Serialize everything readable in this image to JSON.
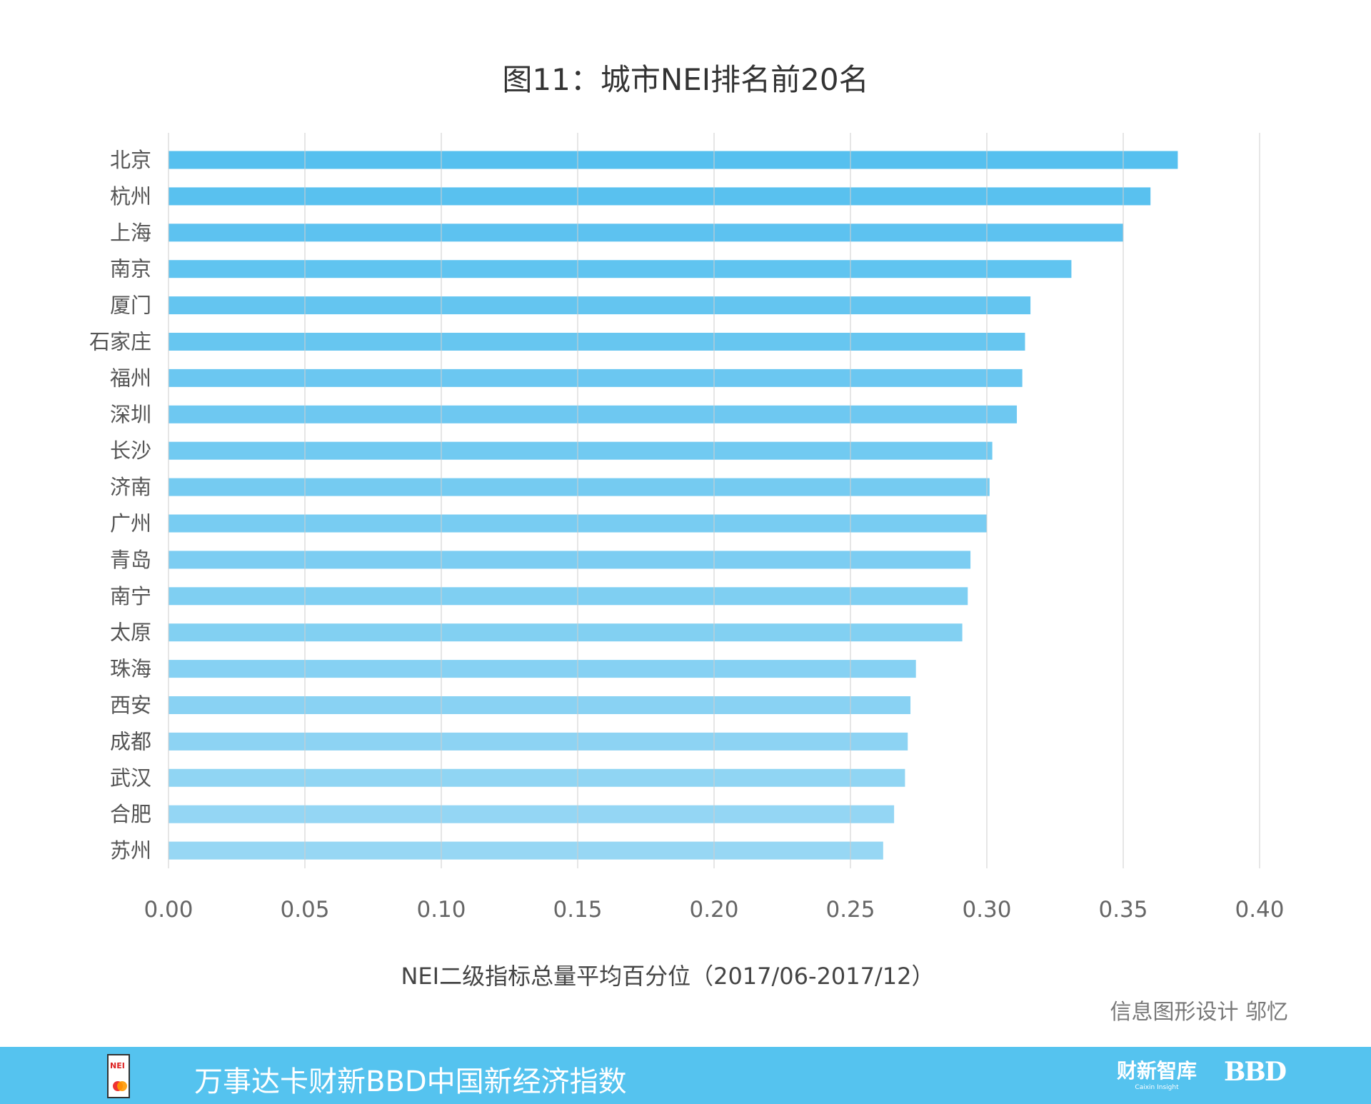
{
  "chart_data": {
    "type": "bar",
    "orientation": "horizontal",
    "title": "图11：城市NEI排名前20名",
    "xlabel": "NEI二级指标总量平均百分位（2017/06-2017/12）",
    "ylabel": "",
    "xlim": [
      0,
      0.4
    ],
    "xticks": [
      "0.00",
      "0.05",
      "0.10",
      "0.15",
      "0.20",
      "0.25",
      "0.30",
      "0.35",
      "0.40"
    ],
    "grid": "vertical",
    "categories": [
      "北京",
      "杭州",
      "上海",
      "南京",
      "厦门",
      "石家庄",
      "福州",
      "深圳",
      "长沙",
      "济南",
      "广州",
      "青岛",
      "南宁",
      "太原",
      "珠海",
      "西安",
      "成都",
      "武汉",
      "合肥",
      "苏州"
    ],
    "values": [
      0.37,
      0.36,
      0.35,
      0.331,
      0.316,
      0.314,
      0.313,
      0.311,
      0.302,
      0.301,
      0.3,
      0.294,
      0.293,
      0.291,
      0.274,
      0.272,
      0.271,
      0.27,
      0.266,
      0.262
    ],
    "colors": {
      "bar_top": "#56c0ef",
      "bar_bottom": "#97d7f4",
      "grid": "#cfcfcf"
    }
  },
  "credit": "信息图形设计 邬忆",
  "footer": {
    "title": "万事达卡财新BBD中国新经济指数",
    "nei_logo_text": "NEI",
    "logo_caixin": "财新智库",
    "logo_caixin_sub": "Caixin Insight",
    "logo_bbd": "BBD",
    "color": "#55c3ef"
  }
}
